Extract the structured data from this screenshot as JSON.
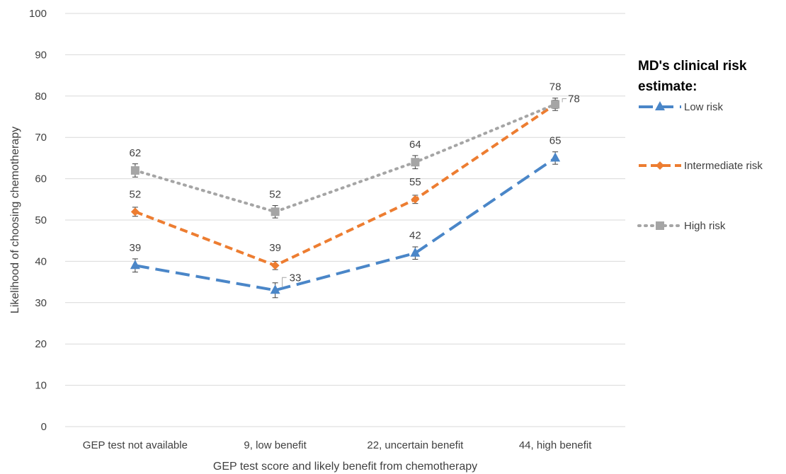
{
  "chart_data": {
    "type": "line",
    "xlabel": "GEP test score and likely benefit from chemotherapy",
    "ylabel": "Likelihood of choosing chemotherapy",
    "ylim": [
      0,
      100
    ],
    "yticks": [
      0,
      10,
      20,
      30,
      40,
      50,
      60,
      70,
      80,
      90,
      100
    ],
    "grid": true,
    "categories": [
      "GEP test not available",
      "9, low benefit",
      "22, uncertain benefit",
      "44, high benefit"
    ],
    "legend": {
      "title": "MD's clinical risk estimate:",
      "position": "right"
    },
    "series": [
      {
        "name": "Low risk",
        "values": [
          39,
          33,
          42,
          65
        ],
        "errors": [
          1.6,
          1.8,
          1.5,
          1.5
        ],
        "color": "#4a86c8",
        "marker": "triangle",
        "dash": "dashed-long"
      },
      {
        "name": "Intermediate risk",
        "values": [
          52,
          39,
          55,
          78
        ],
        "errors": [
          1.1,
          1.0,
          1.0,
          1.0
        ],
        "color": "#ed7d31",
        "marker": "diamond",
        "dash": "dashed"
      },
      {
        "name": "High risk",
        "values": [
          62,
          52,
          64,
          78
        ],
        "errors": [
          1.6,
          1.5,
          1.6,
          1.5
        ],
        "color": "#a5a5a5",
        "marker": "square",
        "dash": "dotted"
      }
    ]
  }
}
